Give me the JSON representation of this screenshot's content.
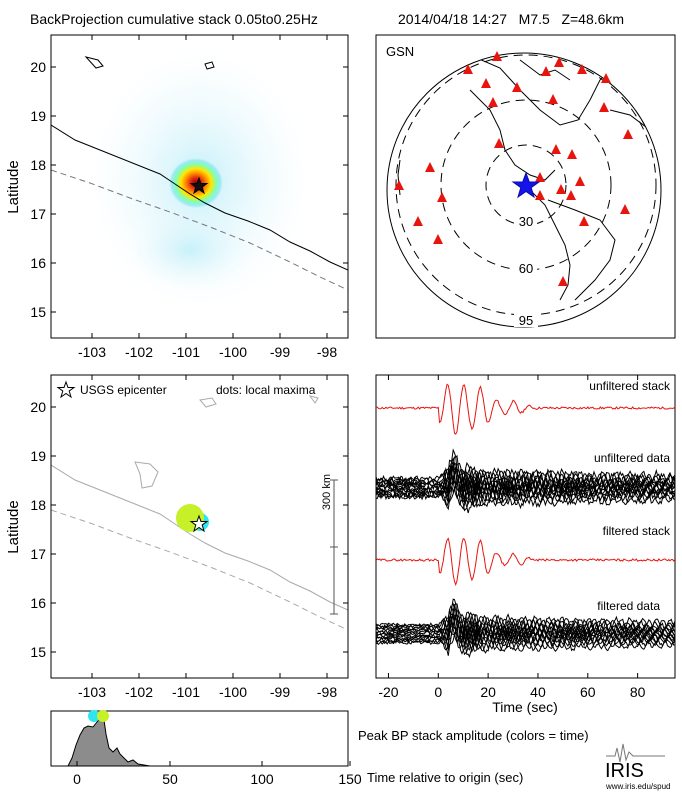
{
  "header": {
    "title": "BackProjection cumulative stack 0.05to0.25Hz",
    "event": "2014/04/18 14:27   M7.5   Z=48.6km"
  },
  "panel_map_top": {
    "ylabel": "Latitude",
    "x_ticks": [
      "-103",
      "-102",
      "-101",
      "-100",
      "-99",
      "-98"
    ],
    "y_ticks": [
      "20",
      "19",
      "18",
      "17",
      "16",
      "15"
    ]
  },
  "panel_globe": {
    "label": "GSN",
    "ring_labels": [
      "30",
      "60",
      "95"
    ]
  },
  "panel_map_bottom": {
    "ylabel": "Latitude",
    "legend_epicenter": "USGS epicenter",
    "legend_dots": "dots: local maxima",
    "scale_label": "300 km",
    "x_ticks": [
      "-103",
      "-102",
      "-101",
      "-100",
      "-99",
      "-98"
    ],
    "y_ticks": [
      "20",
      "19",
      "18",
      "17",
      "16",
      "15"
    ]
  },
  "panel_traces": {
    "labels": [
      "unfiltered stack",
      "unfiltered data",
      "filtered stack",
      "filtered data"
    ],
    "x_ticks": [
      "-20",
      "0",
      "20",
      "40",
      "60",
      "80"
    ],
    "xlabel": "Time (sec)"
  },
  "panel_amplitude": {
    "x_ticks": [
      "0",
      "50",
      "100",
      "150"
    ],
    "title": "Peak BP stack amplitude (colors = time)",
    "xlabel": "Time relative to origin (sec)"
  },
  "logo": {
    "name": "IRIS",
    "url": "www.iris.edu/spud"
  },
  "colors": {
    "stack_trace": "#e8140e",
    "data_trace": "#000000",
    "station": "#e8140e",
    "epicenter_globe": "#1414e8",
    "dot_green": "#c6f027",
    "dot_cyan": "#2fe6f0",
    "coast": "#000000",
    "trench": "#6e6e6e"
  }
}
